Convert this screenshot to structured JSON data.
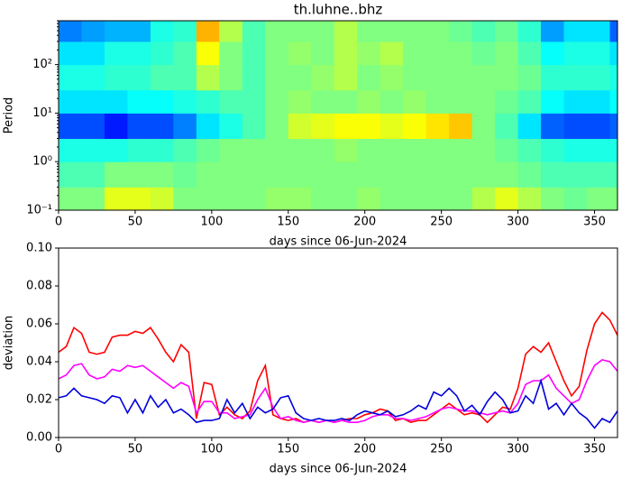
{
  "chart_data": [
    {
      "type": "heatmap",
      "title": "th.luhne..bhz",
      "xlabel": "days since 06-Jun-2024",
      "ylabel": "Period",
      "colormap": "jet",
      "zlim": [
        0,
        1
      ],
      "yscale": "log",
      "x": [
        0,
        15,
        30,
        45,
        60,
        75,
        90,
        105,
        120,
        135,
        150,
        165,
        180,
        195,
        210,
        225,
        240,
        255,
        270,
        285,
        300,
        315,
        330,
        345,
        360,
        365
      ],
      "y": [
        0.1,
        0.3,
        1,
        3,
        10,
        30,
        100,
        300,
        800
      ],
      "values": [
        [
          0.5,
          0.5,
          0.6,
          0.6,
          0.58,
          0.5,
          0.5,
          0.5,
          0.5,
          0.52,
          0.52,
          0.5,
          0.5,
          0.52,
          0.5,
          0.5,
          0.5,
          0.5,
          0.55,
          0.6,
          0.55,
          0.5,
          0.48,
          0.5,
          0.5
        ],
        [
          0.45,
          0.45,
          0.5,
          0.5,
          0.5,
          0.48,
          0.5,
          0.5,
          0.5,
          0.5,
          0.5,
          0.5,
          0.5,
          0.5,
          0.5,
          0.5,
          0.5,
          0.5,
          0.5,
          0.5,
          0.48,
          0.45,
          0.45,
          0.45,
          0.45
        ],
        [
          0.4,
          0.4,
          0.4,
          0.42,
          0.42,
          0.45,
          0.48,
          0.5,
          0.5,
          0.5,
          0.5,
          0.5,
          0.52,
          0.5,
          0.5,
          0.5,
          0.5,
          0.5,
          0.5,
          0.48,
          0.45,
          0.42,
          0.4,
          0.4,
          0.4
        ],
        [
          0.2,
          0.2,
          0.15,
          0.2,
          0.2,
          0.25,
          0.35,
          0.4,
          0.45,
          0.5,
          0.58,
          0.6,
          0.62,
          0.62,
          0.6,
          0.62,
          0.65,
          0.68,
          0.5,
          0.45,
          0.35,
          0.22,
          0.2,
          0.2,
          0.22
        ],
        [
          0.35,
          0.35,
          0.35,
          0.38,
          0.38,
          0.4,
          0.42,
          0.45,
          0.45,
          0.5,
          0.52,
          0.5,
          0.5,
          0.52,
          0.5,
          0.52,
          0.5,
          0.5,
          0.5,
          0.48,
          0.45,
          0.38,
          0.35,
          0.35,
          0.38
        ],
        [
          0.4,
          0.4,
          0.42,
          0.42,
          0.45,
          0.45,
          0.55,
          0.5,
          0.45,
          0.5,
          0.5,
          0.52,
          0.55,
          0.5,
          0.52,
          0.5,
          0.5,
          0.5,
          0.5,
          0.5,
          0.48,
          0.42,
          0.42,
          0.42,
          0.4
        ],
        [
          0.35,
          0.35,
          0.4,
          0.4,
          0.42,
          0.45,
          0.62,
          0.5,
          0.45,
          0.5,
          0.52,
          0.5,
          0.55,
          0.52,
          0.55,
          0.5,
          0.5,
          0.5,
          0.48,
          0.5,
          0.45,
          0.38,
          0.4,
          0.4,
          0.35
        ],
        [
          0.25,
          0.28,
          0.3,
          0.3,
          0.4,
          0.42,
          0.7,
          0.55,
          0.45,
          0.5,
          0.5,
          0.5,
          0.55,
          0.5,
          0.5,
          0.5,
          0.5,
          0.48,
          0.45,
          0.48,
          0.42,
          0.28,
          0.35,
          0.35,
          0.22
        ]
      ],
      "xlim": [
        0,
        365
      ],
      "xticks": [
        0,
        50,
        100,
        150,
        200,
        250,
        300,
        350
      ],
      "ylim": [
        0.1,
        800
      ],
      "yticks": [
        {
          "value": 0.1,
          "label": "10⁻¹"
        },
        {
          "value": 1,
          "label": "10⁰"
        },
        {
          "value": 10,
          "label": "10¹"
        },
        {
          "value": 100,
          "label": "10²"
        }
      ]
    },
    {
      "type": "line",
      "xlabel": "days since 06-Jun-2024",
      "ylabel": "deviation",
      "x": [
        0,
        5,
        10,
        15,
        20,
        25,
        30,
        35,
        40,
        45,
        50,
        55,
        60,
        65,
        70,
        75,
        80,
        85,
        90,
        95,
        100,
        105,
        110,
        115,
        120,
        125,
        130,
        135,
        140,
        145,
        150,
        155,
        160,
        165,
        170,
        175,
        180,
        185,
        190,
        195,
        200,
        205,
        210,
        215,
        220,
        225,
        230,
        235,
        240,
        245,
        250,
        255,
        260,
        265,
        270,
        275,
        280,
        285,
        290,
        295,
        300,
        305,
        310,
        315,
        320,
        325,
        330,
        335,
        340,
        345,
        350,
        355,
        360,
        365
      ],
      "series": [
        {
          "color": "#ff0000",
          "values": [
            0.045,
            0.048,
            0.058,
            0.055,
            0.045,
            0.044,
            0.045,
            0.053,
            0.054,
            0.054,
            0.056,
            0.055,
            0.058,
            0.052,
            0.045,
            0.04,
            0.049,
            0.045,
            0.01,
            0.029,
            0.028,
            0.012,
            0.016,
            0.012,
            0.01,
            0.014,
            0.03,
            0.038,
            0.012,
            0.01,
            0.009,
            0.01,
            0.008,
            0.009,
            0.008,
            0.009,
            0.008,
            0.009,
            0.01,
            0.01,
            0.012,
            0.013,
            0.015,
            0.014,
            0.009,
            0.01,
            0.008,
            0.009,
            0.009,
            0.012,
            0.015,
            0.018,
            0.015,
            0.012,
            0.013,
            0.012,
            0.008,
            0.012,
            0.016,
            0.015,
            0.026,
            0.044,
            0.048,
            0.045,
            0.05,
            0.04,
            0.03,
            0.022,
            0.027,
            0.046,
            0.06,
            0.066,
            0.062,
            0.054
          ]
        },
        {
          "color": "#ff00ff",
          "values": [
            0.031,
            0.033,
            0.038,
            0.039,
            0.033,
            0.031,
            0.032,
            0.036,
            0.035,
            0.038,
            0.037,
            0.038,
            0.035,
            0.032,
            0.029,
            0.026,
            0.029,
            0.027,
            0.013,
            0.019,
            0.019,
            0.013,
            0.013,
            0.01,
            0.011,
            0.012,
            0.02,
            0.026,
            0.016,
            0.01,
            0.011,
            0.009,
            0.008,
            0.009,
            0.008,
            0.009,
            0.008,
            0.009,
            0.008,
            0.008,
            0.009,
            0.011,
            0.012,
            0.012,
            0.01,
            0.01,
            0.009,
            0.01,
            0.011,
            0.013,
            0.015,
            0.016,
            0.015,
            0.014,
            0.014,
            0.013,
            0.012,
            0.013,
            0.014,
            0.013,
            0.018,
            0.028,
            0.03,
            0.03,
            0.033,
            0.026,
            0.022,
            0.018,
            0.02,
            0.03,
            0.038,
            0.041,
            0.04,
            0.035
          ]
        },
        {
          "color": "#0000dd",
          "values": [
            0.021,
            0.022,
            0.026,
            0.022,
            0.021,
            0.02,
            0.018,
            0.022,
            0.021,
            0.013,
            0.02,
            0.013,
            0.022,
            0.016,
            0.02,
            0.013,
            0.015,
            0.012,
            0.008,
            0.009,
            0.009,
            0.01,
            0.02,
            0.013,
            0.018,
            0.01,
            0.016,
            0.013,
            0.015,
            0.021,
            0.022,
            0.013,
            0.01,
            0.009,
            0.01,
            0.009,
            0.009,
            0.01,
            0.009,
            0.012,
            0.014,
            0.013,
            0.012,
            0.014,
            0.011,
            0.012,
            0.014,
            0.017,
            0.015,
            0.024,
            0.022,
            0.026,
            0.022,
            0.014,
            0.017,
            0.012,
            0.019,
            0.024,
            0.02,
            0.013,
            0.014,
            0.022,
            0.018,
            0.03,
            0.015,
            0.018,
            0.012,
            0.018,
            0.013,
            0.01,
            0.005,
            0.01,
            0.008,
            0.014
          ]
        }
      ],
      "xlim": [
        0,
        365
      ],
      "xticks": [
        0,
        50,
        100,
        150,
        200,
        250,
        300,
        350
      ],
      "ylim": [
        0,
        0.1
      ],
      "yticks": [
        {
          "value": 0,
          "label": "0.00"
        },
        {
          "value": 0.02,
          "label": "0.02"
        },
        {
          "value": 0.04,
          "label": "0.04"
        },
        {
          "value": 0.06,
          "label": "0.06"
        },
        {
          "value": 0.08,
          "label": "0.08"
        },
        {
          "value": 0.1,
          "label": "0.10"
        }
      ]
    }
  ]
}
